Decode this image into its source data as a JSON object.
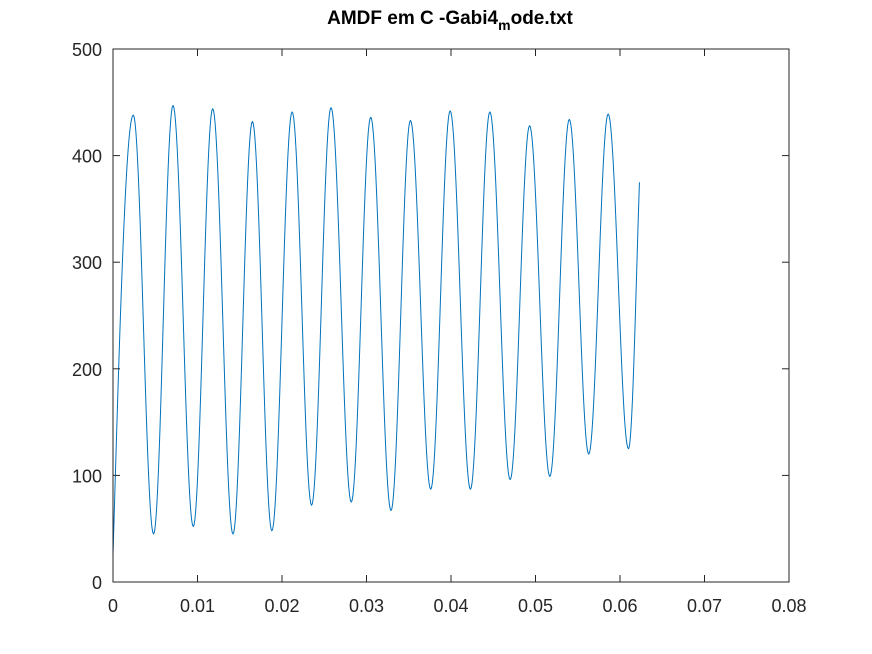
{
  "chart_data": {
    "type": "line",
    "title": {
      "main": "AMDF em C -Gabi4",
      "subscript": "m",
      "suffix": "ode.txt"
    },
    "xlabel": "",
    "ylabel": "",
    "xlim": [
      0,
      0.08
    ],
    "ylim": [
      0,
      500
    ],
    "x_ticks": [
      0,
      0.01,
      0.02,
      0.03,
      0.04,
      0.05,
      0.06,
      0.07,
      0.08
    ],
    "x_tick_labels": [
      "0",
      "0.01",
      "0.02",
      "0.03",
      "0.04",
      "0.05",
      "0.06",
      "0.07",
      "0.08"
    ],
    "y_ticks": [
      0,
      100,
      200,
      300,
      400,
      500
    ],
    "y_tick_labels": [
      "0",
      "100",
      "200",
      "300",
      "400",
      "500"
    ],
    "grid": false,
    "box": true,
    "line_color": "#0072bd",
    "axis_color": "#262626",
    "series": [
      {
        "start": [
          0,
          25
        ],
        "points": [
          [
            0.0024,
            438
          ],
          [
            0.0048,
            45
          ],
          [
            0.0071,
            447
          ],
          [
            0.0095,
            52
          ],
          [
            0.0118,
            444
          ],
          [
            0.0142,
            45
          ],
          [
            0.0165,
            432
          ],
          [
            0.0188,
            48
          ],
          [
            0.0212,
            441
          ],
          [
            0.0235,
            72
          ],
          [
            0.0258,
            445
          ],
          [
            0.0282,
            75
          ],
          [
            0.0305,
            436
          ],
          [
            0.0329,
            67
          ],
          [
            0.0352,
            433
          ],
          [
            0.0376,
            87
          ],
          [
            0.0399,
            442
          ],
          [
            0.0423,
            87
          ],
          [
            0.0446,
            441
          ],
          [
            0.047,
            96
          ],
          [
            0.0493,
            428
          ],
          [
            0.0517,
            99
          ],
          [
            0.054,
            434
          ],
          [
            0.0563,
            120
          ],
          [
            0.0586,
            439
          ],
          [
            0.061,
            125
          ],
          [
            0.0623,
            375
          ]
        ]
      }
    ]
  }
}
